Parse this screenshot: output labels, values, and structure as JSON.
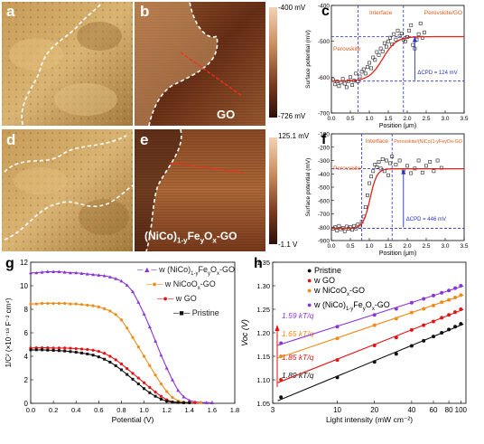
{
  "panels": {
    "a": "a",
    "b": "b",
    "c": "c",
    "d": "d",
    "e": "e",
    "f": "f",
    "g": "g",
    "h": "h"
  },
  "image_labels": {
    "b": "GO",
    "e_prefix": "(NiCo)",
    "e_sub1": "1-y",
    "e_mid": "Fe",
    "e_sub2": "y",
    "e_mid2": "O",
    "e_sub3": "x",
    "e_suffix": "-GO"
  },
  "colorbar_top": {
    "max": "-400 mV",
    "min": "-726 mV"
  },
  "colorbar_bottom": {
    "max": "125.1 mV",
    "min": "-1.1 V"
  },
  "colors": {
    "sem_light": "#d8b06a",
    "sem_dark": "#6e4716",
    "kpfm_dark": "#3c1a0c",
    "kpfm_light": "#f0c59d"
  },
  "chart_data": [
    {
      "panel": "c",
      "type": "scatter",
      "ylabel": "Surface potential (mV)",
      "xlabel": "Position (μm)",
      "ylim": [
        -700,
        -400
      ],
      "xlim": [
        0,
        3.5
      ],
      "yticks": [
        "-400",
        "-500",
        "-600",
        "-700"
      ],
      "xticks": [
        "0.0",
        "0.5",
        "1.0",
        "1.5",
        "2.0",
        "2.5",
        "3.0",
        "3.5"
      ],
      "annotations": [
        "Perovskite",
        "Interface",
        "Perovskite/GO",
        "ΔCPD = 124 mV"
      ],
      "dashed_vlines": [
        0.7,
        1.9
      ],
      "hlines": [
        -611,
        -487
      ],
      "points": [
        [
          0.05,
          -608
        ],
        [
          0.1,
          -620
        ],
        [
          0.15,
          -612
        ],
        [
          0.2,
          -625
        ],
        [
          0.25,
          -615
        ],
        [
          0.3,
          -605
        ],
        [
          0.35,
          -618
        ],
        [
          0.4,
          -628
        ],
        [
          0.45,
          -611
        ],
        [
          0.5,
          -600
        ],
        [
          0.55,
          -622
        ],
        [
          0.6,
          -610
        ],
        [
          0.65,
          -590
        ],
        [
          0.7,
          -612
        ],
        [
          0.75,
          -598
        ],
        [
          0.8,
          -585
        ],
        [
          0.85,
          -578
        ],
        [
          0.9,
          -590
        ],
        [
          0.95,
          -572
        ],
        [
          1.0,
          -560
        ],
        [
          1.05,
          -575
        ],
        [
          1.1,
          -545
        ],
        [
          1.15,
          -552
        ],
        [
          1.2,
          -530
        ],
        [
          1.25,
          -538
        ],
        [
          1.3,
          -520
        ],
        [
          1.35,
          -528
        ],
        [
          1.4,
          -505
        ],
        [
          1.45,
          -515
        ],
        [
          1.5,
          -500
        ],
        [
          1.55,
          -490
        ],
        [
          1.6,
          -508
        ],
        [
          1.65,
          -480
        ],
        [
          1.7,
          -495
        ],
        [
          1.75,
          -470
        ],
        [
          1.8,
          -485
        ],
        [
          1.85,
          -478
        ],
        [
          1.9,
          -495
        ],
        [
          1.95,
          -500
        ],
        [
          2.0,
          -488
        ],
        [
          2.05,
          -470
        ],
        [
          2.1,
          -455
        ],
        [
          2.15,
          -510
        ],
        [
          2.2,
          -520
        ],
        [
          2.25,
          -495
        ],
        [
          2.3,
          -480
        ],
        [
          2.35,
          -450
        ],
        [
          2.4,
          -490
        ],
        [
          2.45,
          -475
        ]
      ],
      "fit": {
        "low": -611,
        "high": -487,
        "center": 1.35,
        "width": 0.18
      }
    },
    {
      "panel": "f",
      "type": "scatter",
      "ylabel": "Surface potential (mV)",
      "xlabel": "Position (μm)",
      "ylim": [
        -900,
        -100
      ],
      "xlim": [
        0,
        3.5
      ],
      "yticks": [
        "-100",
        "-200",
        "-300",
        "-400",
        "-500",
        "-600",
        "-700",
        "-800",
        "-900"
      ],
      "xticks": [
        "0.0",
        "0.5",
        "1.0",
        "1.5",
        "2.0",
        "2.5",
        "3.0",
        "3.5"
      ],
      "annotations": [
        "Perovskite",
        "Interface",
        "Perovskite/(NiCo)1-yFeyOx-GO",
        "ΔCPD = 446 mV"
      ],
      "dashed_vlines": [
        0.8,
        1.6
      ],
      "hlines": [
        -808,
        -362
      ],
      "points": [
        [
          0.05,
          -810
        ],
        [
          0.1,
          -800
        ],
        [
          0.15,
          -825
        ],
        [
          0.2,
          -790
        ],
        [
          0.25,
          -815
        ],
        [
          0.3,
          -805
        ],
        [
          0.35,
          -830
        ],
        [
          0.4,
          -795
        ],
        [
          0.45,
          -812
        ],
        [
          0.5,
          -800
        ],
        [
          0.55,
          -820
        ],
        [
          0.6,
          -790
        ],
        [
          0.65,
          -810
        ],
        [
          0.7,
          -780
        ],
        [
          0.75,
          -795
        ],
        [
          0.8,
          -760
        ],
        [
          0.85,
          -720
        ],
        [
          0.9,
          -650
        ],
        [
          0.95,
          -560
        ],
        [
          1.0,
          -470
        ],
        [
          1.05,
          -420
        ],
        [
          1.1,
          -380
        ],
        [
          1.15,
          -330
        ],
        [
          1.2,
          -350
        ],
        [
          1.25,
          -310
        ],
        [
          1.3,
          -360
        ],
        [
          1.35,
          -290
        ],
        [
          1.4,
          -380
        ],
        [
          1.45,
          -300
        ],
        [
          1.5,
          -410
        ],
        [
          1.55,
          -320
        ],
        [
          1.6,
          -270
        ],
        [
          1.7,
          -330
        ],
        [
          1.8,
          -300
        ],
        [
          1.9,
          -370
        ],
        [
          2.0,
          -340
        ],
        [
          2.1,
          -395
        ],
        [
          2.2,
          -360
        ],
        [
          2.3,
          -300
        ],
        [
          2.4,
          -390
        ],
        [
          2.5,
          -340
        ],
        [
          2.6,
          -310
        ],
        [
          2.7,
          -380
        ],
        [
          2.8,
          -300
        ],
        [
          2.9,
          -355
        ]
      ],
      "fit": {
        "low": -808,
        "high": -362,
        "center": 1.02,
        "width": 0.09
      }
    },
    {
      "panel": "g",
      "type": "line",
      "ylabel": "1/C² (×10⁻¹⁸ F⁻² cm⁴)",
      "xlabel": "Potential (V)",
      "xlim": [
        0,
        1.8
      ],
      "ylim": [
        0,
        12
      ],
      "xticks": [
        "0.0",
        "0.2",
        "0.4",
        "0.6",
        "0.8",
        "1.0",
        "1.2",
        "1.4",
        "1.6",
        "1.8"
      ],
      "yticks": [
        "0",
        "2",
        "4",
        "6",
        "8",
        "10",
        "12"
      ],
      "series": [
        {
          "name": "w (NiCo)1-yFeyOx-GO",
          "color": "#8a35d8",
          "marker": "triangle",
          "x": [
            0,
            0.05,
            0.1,
            0.15,
            0.2,
            0.25,
            0.3,
            0.35,
            0.4,
            0.45,
            0.5,
            0.55,
            0.6,
            0.65,
            0.7,
            0.75,
            0.8,
            0.85,
            0.9,
            0.95,
            1.0,
            1.05,
            1.1,
            1.15,
            1.2,
            1.25,
            1.3,
            1.35,
            1.4,
            1.45,
            1.5,
            1.55,
            1.6
          ],
          "y": [
            11.1,
            11.1,
            11.15,
            11.2,
            11.2,
            11.2,
            11.15,
            11.1,
            11.1,
            11.05,
            11.0,
            10.95,
            10.9,
            10.85,
            10.75,
            10.6,
            10.4,
            10.05,
            9.5,
            8.6,
            7.6,
            6.5,
            5.3,
            4.1,
            3.0,
            2.0,
            1.1,
            0.55,
            0.25,
            0.12,
            0.08,
            0.06,
            0.05
          ]
        },
        {
          "name": "w NiCoOx-GO",
          "color": "#f08c1a",
          "marker": "circle",
          "x": [
            0,
            0.05,
            0.1,
            0.15,
            0.2,
            0.25,
            0.3,
            0.35,
            0.4,
            0.45,
            0.5,
            0.55,
            0.6,
            0.65,
            0.7,
            0.75,
            0.8,
            0.85,
            0.9,
            0.95,
            1.0,
            1.05,
            1.1,
            1.15,
            1.2,
            1.25,
            1.3,
            1.35,
            1.4,
            1.45,
            1.5
          ],
          "y": [
            8.45,
            8.45,
            8.5,
            8.5,
            8.5,
            8.5,
            8.5,
            8.45,
            8.45,
            8.4,
            8.35,
            8.3,
            8.2,
            8.05,
            7.85,
            7.55,
            7.1,
            6.4,
            5.6,
            4.8,
            4.0,
            3.2,
            2.4,
            1.65,
            1.0,
            0.5,
            0.2,
            0.1,
            0.07,
            0.05,
            0.05
          ]
        },
        {
          "name": "w GO",
          "color": "#e01515",
          "marker": "circle",
          "x": [
            0,
            0.05,
            0.1,
            0.15,
            0.2,
            0.25,
            0.3,
            0.35,
            0.4,
            0.45,
            0.5,
            0.55,
            0.6,
            0.65,
            0.7,
            0.75,
            0.8,
            0.85,
            0.9,
            0.95,
            1.0,
            1.05,
            1.1,
            1.15,
            1.2,
            1.25,
            1.3,
            1.35,
            1.4,
            1.45
          ],
          "y": [
            4.7,
            4.72,
            4.72,
            4.72,
            4.7,
            4.7,
            4.7,
            4.68,
            4.65,
            4.62,
            4.58,
            4.52,
            4.42,
            4.25,
            4.0,
            3.7,
            3.35,
            2.95,
            2.55,
            2.15,
            1.75,
            1.35,
            0.95,
            0.6,
            0.3,
            0.12,
            0.07,
            0.05,
            0.05,
            0.05
          ]
        },
        {
          "name": "Pristine",
          "color": "#111111",
          "marker": "square",
          "x": [
            0,
            0.05,
            0.1,
            0.15,
            0.2,
            0.25,
            0.3,
            0.35,
            0.4,
            0.45,
            0.5,
            0.55,
            0.6,
            0.65,
            0.7,
            0.75,
            0.8,
            0.85,
            0.9,
            0.95,
            1.0,
            1.05,
            1.1,
            1.15,
            1.2,
            1.25,
            1.3,
            1.35,
            1.4
          ],
          "y": [
            4.55,
            4.55,
            4.55,
            4.52,
            4.5,
            4.48,
            4.45,
            4.4,
            4.35,
            4.28,
            4.2,
            4.1,
            3.95,
            3.75,
            3.5,
            3.2,
            2.85,
            2.45,
            2.05,
            1.65,
            1.25,
            0.9,
            0.6,
            0.35,
            0.18,
            0.1,
            0.07,
            0.05,
            0.05
          ]
        }
      ]
    },
    {
      "panel": "h",
      "type": "scatter",
      "ylabel": "Voc (V)",
      "xlabel": "Light intensity (mW cm⁻²)",
      "xscale": "log",
      "xlim": [
        3,
        110
      ],
      "ylim": [
        1.05,
        1.35
      ],
      "xticks": [
        "3",
        "10",
        "20",
        "40",
        "60",
        "80",
        "100"
      ],
      "yticks": [
        "1.05",
        "1.10",
        "1.15",
        "1.20",
        "1.25",
        "1.30",
        "1.35"
      ],
      "series": [
        {
          "name": "Pristine",
          "color": "#111111",
          "slope_label": "1.89 kT/q",
          "x": [
            3.5,
            10,
            20,
            30,
            40,
            50,
            60,
            70,
            80,
            90,
            100
          ],
          "y": [
            1.063,
            1.105,
            1.138,
            1.155,
            1.172,
            1.183,
            1.192,
            1.2,
            1.207,
            1.213,
            1.219
          ]
        },
        {
          "name": "w GO",
          "color": "#e01515",
          "slope_label": "1.85 kT/q",
          "x": [
            3.5,
            10,
            20,
            30,
            40,
            50,
            60,
            70,
            80,
            90,
            100
          ],
          "y": [
            1.1,
            1.142,
            1.173,
            1.19,
            1.206,
            1.216,
            1.224,
            1.232,
            1.238,
            1.244,
            1.25
          ]
        },
        {
          "name": "w NiCoOx-GO",
          "color": "#f08c1a",
          "slope_label": "1.65 kT/q",
          "x": [
            3.5,
            10,
            20,
            30,
            40,
            50,
            60,
            70,
            80,
            90,
            100
          ],
          "y": [
            1.15,
            1.188,
            1.216,
            1.23,
            1.243,
            1.251,
            1.258,
            1.265,
            1.27,
            1.275,
            1.28
          ]
        },
        {
          "name": "w (NiCo)1-yFeyOx-GO",
          "color": "#8a35d8",
          "slope_label": "1.59 kT/q",
          "x": [
            3.5,
            10,
            20,
            30,
            40,
            50,
            60,
            70,
            80,
            90,
            100
          ],
          "y": [
            1.178,
            1.213,
            1.238,
            1.251,
            1.264,
            1.272,
            1.279,
            1.285,
            1.29,
            1.295,
            1.3
          ]
        }
      ]
    }
  ],
  "legend_g": {
    "s1_pre": "w (NiCo)",
    "s1_sub1": "1-y",
    "s1_mid": "Fe",
    "s1_sub2": "y",
    "s1_mid2": "O",
    "s1_sub3": "x",
    "s1_post": "-GO",
    "s2_pre": "w NiCoO",
    "s2_sub": "x",
    "s2_post": "-GO",
    "s3": "w GO",
    "s4": "Pristine"
  },
  "legend_h": {
    "s1": "Pristine",
    "s2": "w GO",
    "s3_pre": "w NiCoO",
    "s3_sub": "x",
    "s3_post": "-GO",
    "s4_pre": "w (NiCo)",
    "s4_sub1": "1-y",
    "s4_mid": "Fe",
    "s4_sub2": "y",
    "s4_mid2": "O",
    "s4_sub3": "x",
    "s4_post": "-GO"
  }
}
